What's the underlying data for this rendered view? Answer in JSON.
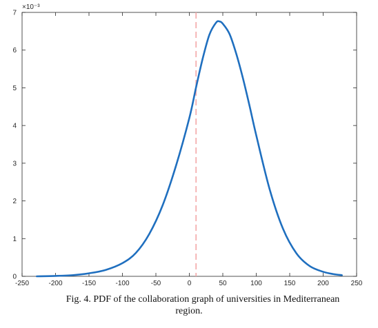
{
  "chart_data": {
    "type": "line",
    "title": "",
    "xlabel": "",
    "ylabel": "",
    "xlim": [
      -250,
      250
    ],
    "ylim": [
      0,
      0.007
    ],
    "y_exponent_label": "×10⁻³",
    "x_ticks": [
      -250,
      -200,
      -150,
      -100,
      -50,
      0,
      50,
      100,
      150,
      200,
      250
    ],
    "x_tick_labels": [
      "-250",
      "-200",
      "-150",
      "-100",
      "-50",
      "0",
      "50",
      "100",
      "150",
      "200",
      "250"
    ],
    "y_ticks": [
      0,
      0.001,
      0.002,
      0.003,
      0.004,
      0.005,
      0.006,
      0.007
    ],
    "y_tick_labels": [
      "0",
      "1",
      "2",
      "3",
      "4",
      "5",
      "6",
      "7"
    ],
    "grid": false,
    "series": [
      {
        "color": "#1f6fbf",
        "x": [
          -228,
          -200,
          -175,
          -150,
          -125,
          -100,
          -80,
          -60,
          -40,
          -20,
          0,
          10,
          20,
          30,
          40,
          45,
          50,
          60,
          70,
          80,
          90,
          100,
          120,
          140,
          160,
          180,
          200,
          215,
          228
        ],
        "y": [
          0.0,
          1e-05,
          3e-05,
          8e-05,
          0.00017,
          0.00035,
          0.00062,
          0.00112,
          0.00188,
          0.00293,
          0.0042,
          0.00501,
          0.00578,
          0.00641,
          0.00673,
          0.00676,
          0.0067,
          0.00643,
          0.00591,
          0.00526,
          0.00452,
          0.00374,
          0.00231,
          0.00126,
          0.00061,
          0.00027,
          0.00012,
          6e-05,
          3e-05
        ]
      }
    ],
    "reference_line": {
      "x": 10,
      "color": "#f4a7a7",
      "style": "dashed"
    }
  },
  "caption": {
    "line1": "Fig. 4.  PDF of the collaboration graph of universities in Mediterranean",
    "line2": "region."
  }
}
